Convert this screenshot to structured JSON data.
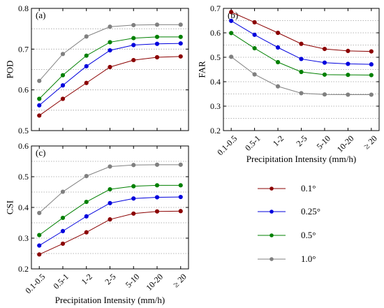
{
  "colors": {
    "0.1": "#8b0000",
    "0.25": "#0000dd",
    "0.5": "#008000",
    "1.0": "#808080",
    "grid": "#a0a0a0"
  },
  "x_tick_symbol_ge": "≥ 20",
  "chart_data": [
    {
      "type": "line",
      "panel": "(a)",
      "ylabel": "POD",
      "xlabel": "",
      "ylim": [
        0.5,
        0.8
      ],
      "yticks": [
        "0.5",
        "0.6",
        "0.7",
        "0.8"
      ],
      "categories": [
        "0.1-0.5",
        "0.5-1",
        "1-2",
        "2-5",
        "5-10",
        "10-20",
        "≥ 20"
      ],
      "series": [
        {
          "name": "0.1°",
          "values": [
            0.537,
            0.578,
            0.617,
            0.656,
            0.673,
            0.68,
            0.682
          ]
        },
        {
          "name": "0.25°",
          "values": [
            0.562,
            0.611,
            0.658,
            0.697,
            0.71,
            0.713,
            0.714
          ]
        },
        {
          "name": "0.5°",
          "values": [
            0.578,
            0.636,
            0.684,
            0.717,
            0.727,
            0.73,
            0.73
          ]
        },
        {
          "name": "1.0°",
          "values": [
            0.622,
            0.688,
            0.731,
            0.755,
            0.759,
            0.76,
            0.76
          ]
        }
      ],
      "grid": "horizontal dotted"
    },
    {
      "type": "line",
      "panel": "(b)",
      "ylabel": "FAR",
      "xlabel": "Precipitation Intensity (mm/h)",
      "ylim": [
        0.2,
        0.7
      ],
      "yticks": [
        "0.2",
        "0.3",
        "0.4",
        "0.5",
        "0.6",
        "0.7"
      ],
      "categories": [
        "0.1-0.5",
        "0.5-1",
        "1-2",
        "2-5",
        "5-10",
        "10-20",
        "≥ 20"
      ],
      "series": [
        {
          "name": "0.1°",
          "values": [
            0.685,
            0.643,
            0.6,
            0.555,
            0.534,
            0.526,
            0.524
          ]
        },
        {
          "name": "0.25°",
          "values": [
            0.649,
            0.592,
            0.54,
            0.493,
            0.478,
            0.473,
            0.471
          ]
        },
        {
          "name": "0.5°",
          "values": [
            0.599,
            0.537,
            0.48,
            0.44,
            0.429,
            0.428,
            0.427
          ]
        },
        {
          "name": "1.0°",
          "values": [
            0.502,
            0.43,
            0.381,
            0.353,
            0.348,
            0.347,
            0.347
          ]
        }
      ],
      "grid": "horizontal dotted"
    },
    {
      "type": "line",
      "panel": "(c)",
      "ylabel": "CSI",
      "xlabel": "Precipitation Intensity (mm/h)",
      "ylim": [
        0.2,
        0.6
      ],
      "yticks": [
        "0.2",
        "0.3",
        "0.4",
        "0.5",
        "0.6"
      ],
      "categories": [
        "0.1-0.5",
        "0.5-1",
        "1-2",
        "2-5",
        "5-10",
        "10-20",
        "≥ 20"
      ],
      "series": [
        {
          "name": "0.1°",
          "values": [
            0.247,
            0.282,
            0.319,
            0.361,
            0.38,
            0.387,
            0.388
          ]
        },
        {
          "name": "0.25°",
          "values": [
            0.276,
            0.323,
            0.371,
            0.414,
            0.429,
            0.433,
            0.434
          ]
        },
        {
          "name": "0.5°",
          "values": [
            0.31,
            0.366,
            0.418,
            0.459,
            0.469,
            0.472,
            0.472
          ]
        },
        {
          "name": "1.0°",
          "values": [
            0.382,
            0.451,
            0.502,
            0.533,
            0.538,
            0.539,
            0.539
          ]
        }
      ],
      "grid": "horizontal dotted"
    }
  ],
  "legend": {
    "entries": [
      "0.1°",
      "0.25°",
      "0.5°",
      "1.0°"
    ],
    "placement": "right, below panel (b)"
  }
}
